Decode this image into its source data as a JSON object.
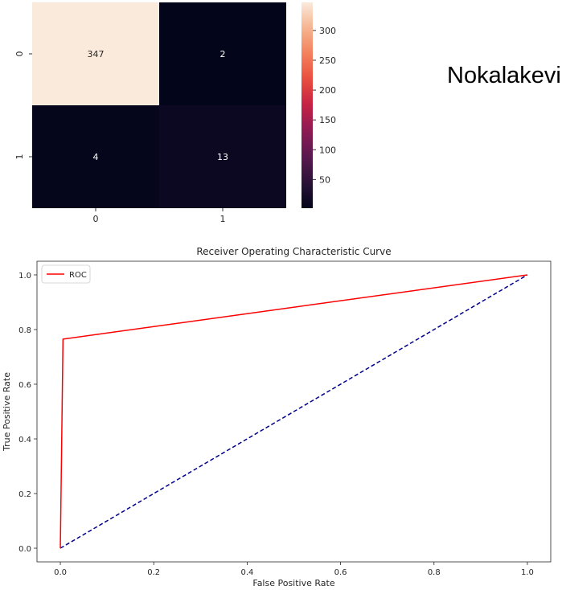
{
  "side_text": "Nokalakevi",
  "chart_data": [
    {
      "type": "heatmap",
      "rows": [
        "0",
        "1"
      ],
      "cols": [
        "0",
        "1"
      ],
      "values": [
        [
          347,
          2
        ],
        [
          4,
          13
        ]
      ],
      "colorbar_ticks": [
        50,
        100,
        150,
        200,
        250,
        300
      ],
      "vmin": 2,
      "vmax": 347
    },
    {
      "type": "line",
      "title": "Receiver Operating Characteristic Curve",
      "xlabel": "False Positive Rate",
      "ylabel": "True Positive Rate",
      "xlim": [
        -0.05,
        1.05
      ],
      "ylim": [
        -0.05,
        1.05
      ],
      "xticks": [
        "0.0",
        "0.2",
        "0.4",
        "0.6",
        "0.8",
        "1.0"
      ],
      "yticks": [
        "0.0",
        "0.2",
        "0.4",
        "0.6",
        "0.8",
        "1.0"
      ],
      "legend_position": "top-left",
      "series": [
        {
          "name": "ROC",
          "color": "#ff0000",
          "style": "solid",
          "x": [
            0.0,
            0.0057,
            1.0
          ],
          "y": [
            0.0,
            0.765,
            1.0
          ]
        },
        {
          "name": "",
          "color": "#00008b",
          "style": "dashed",
          "x": [
            0.0,
            1.0
          ],
          "y": [
            0.0,
            1.0
          ]
        }
      ]
    }
  ]
}
